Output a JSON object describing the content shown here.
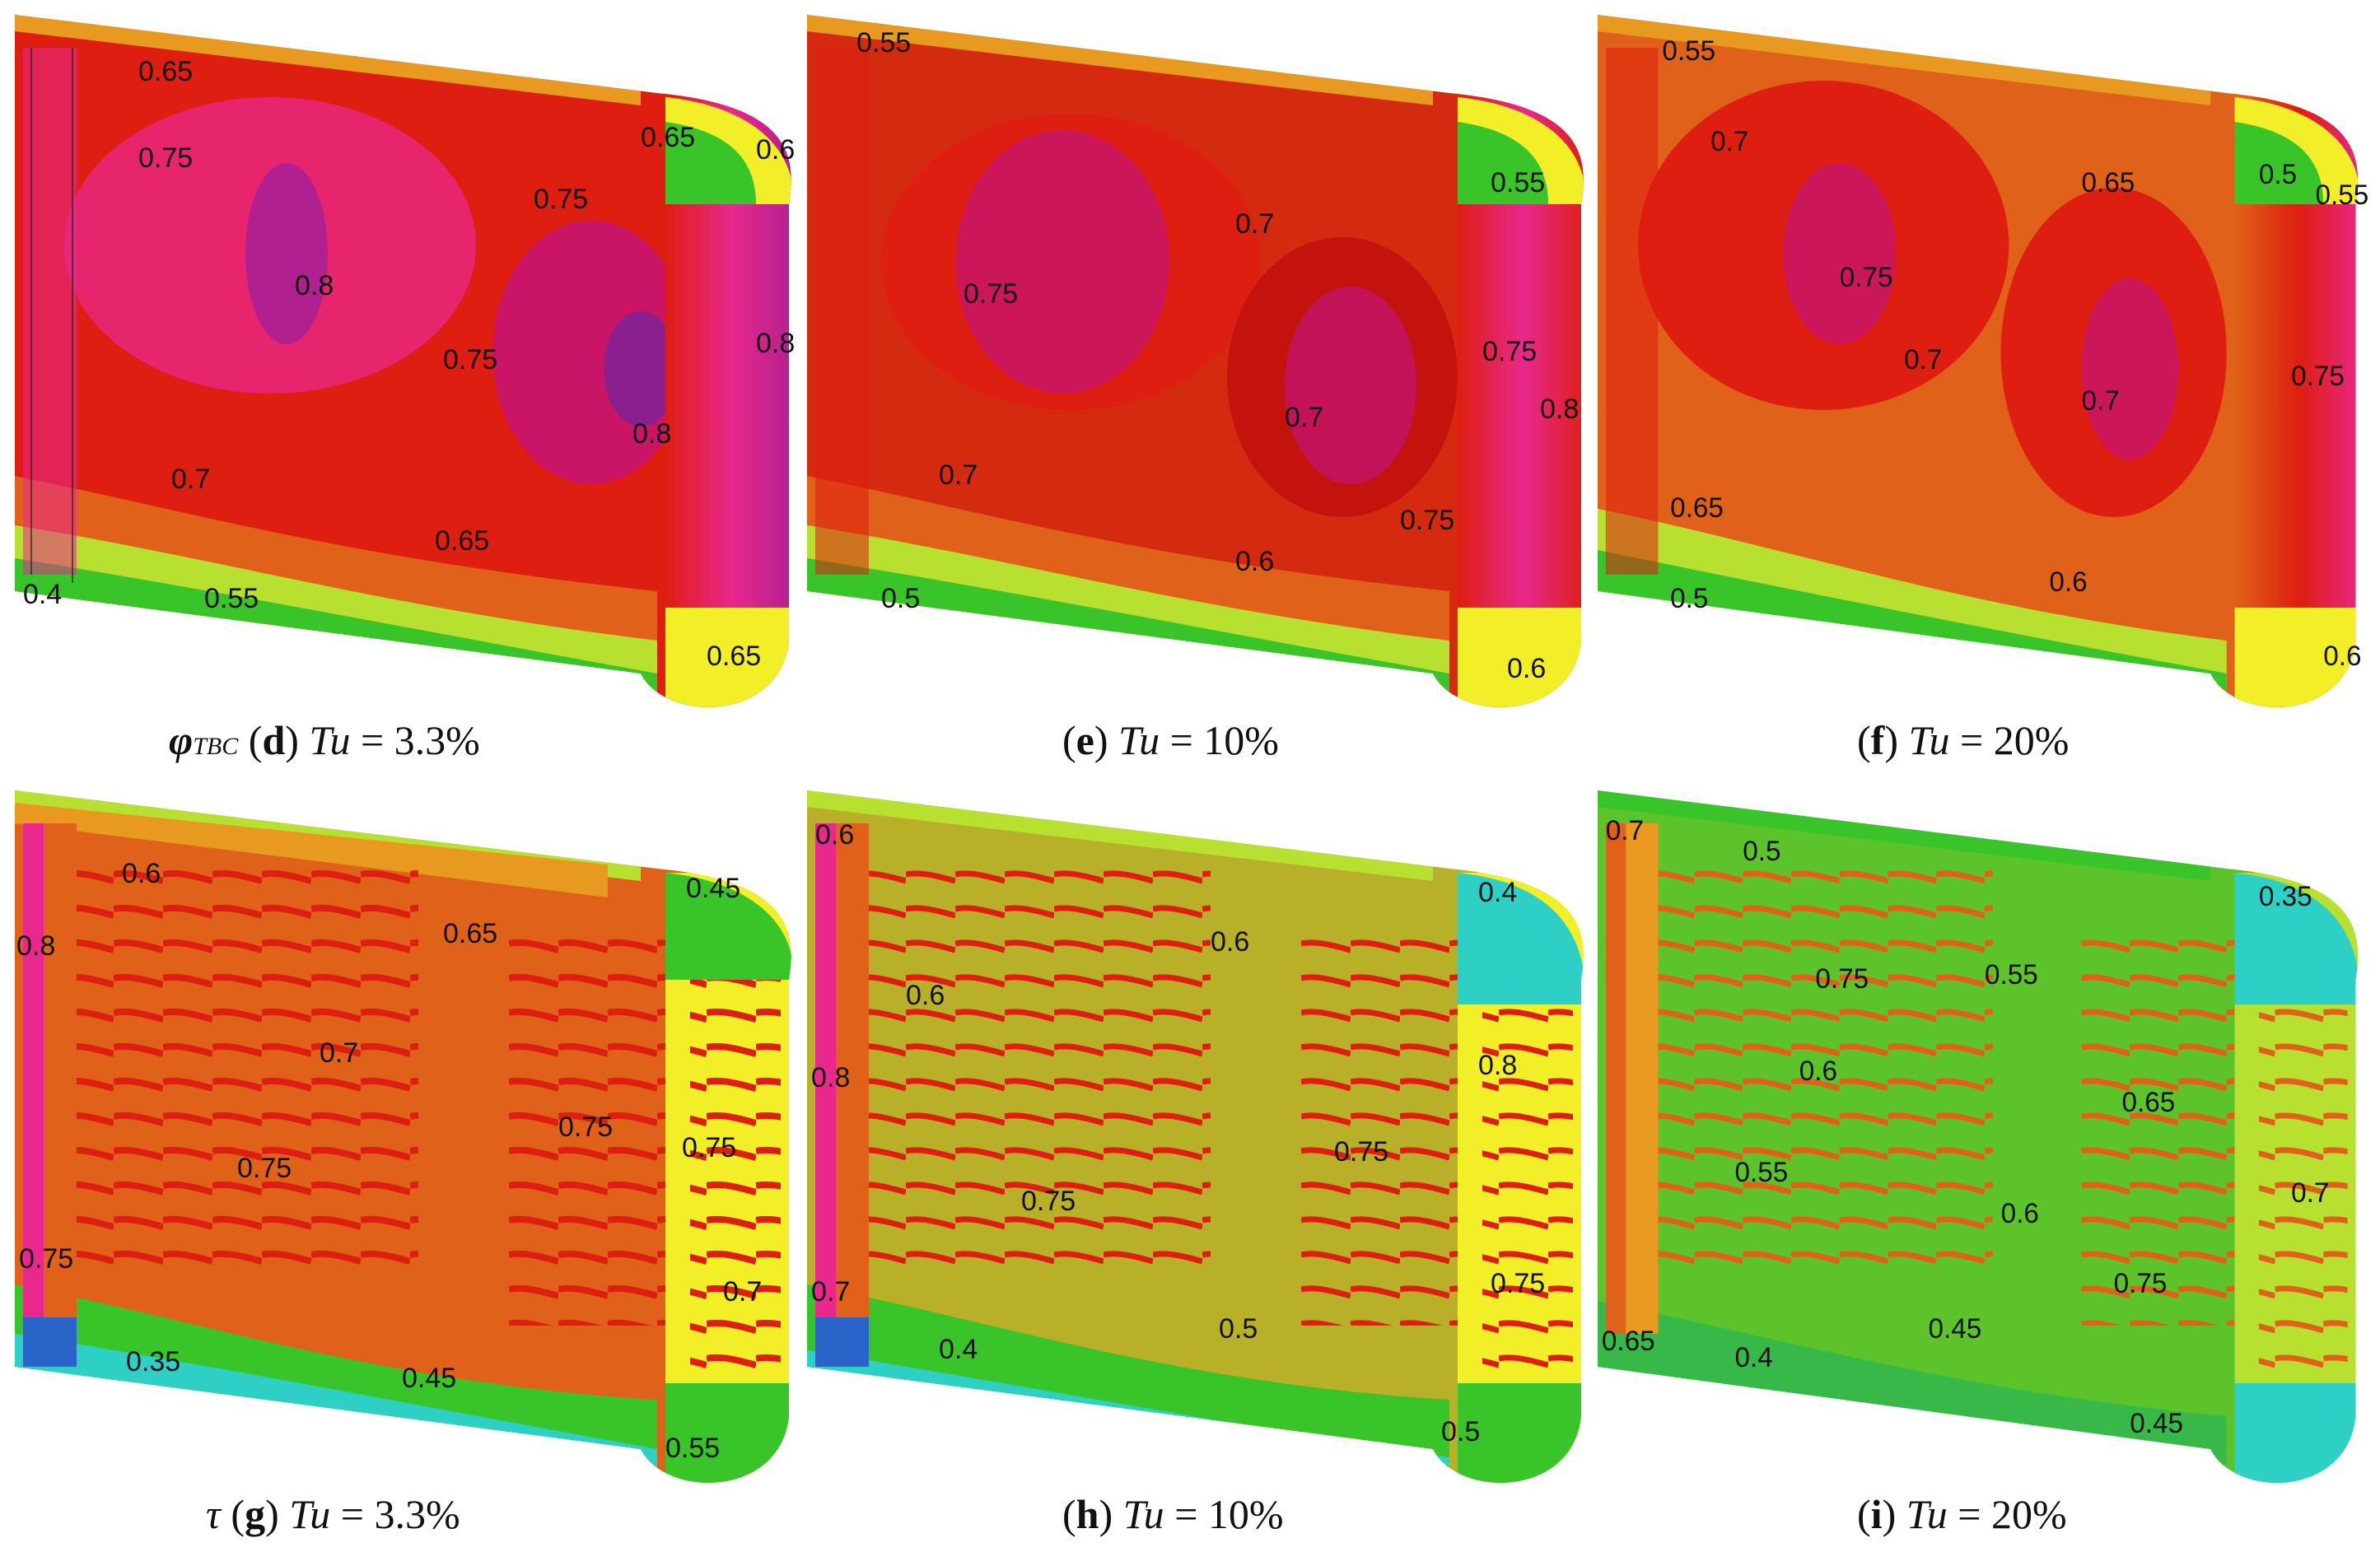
{
  "colors": {
    "magenta": "#e8288c",
    "purple": "#b0208f",
    "red": "#de1e10",
    "darkred": "#c4120c",
    "orange": "#e0621a",
    "amber": "#e89a20",
    "yellow": "#f2ee28",
    "lime": "#b8e030",
    "green": "#39c42a",
    "cyan": "#2ed0c6",
    "blue": "#2a64c8"
  },
  "panels": [
    {
      "id": "d",
      "caption": {
        "symbol": "φ",
        "subscript": "TBC",
        "letter": "d",
        "variable": "Tu",
        "equals": " = ",
        "value": "3.3%"
      },
      "labels": [
        "0.65",
        "0.75",
        "0.8",
        "0.75",
        "0.75",
        "0.7",
        "0.65",
        "0.55",
        "0.4",
        "0.65",
        "0.6",
        "0.8",
        "0.8",
        "0.65"
      ]
    },
    {
      "id": "e",
      "caption": {
        "symbol": "",
        "subscript": "",
        "letter": "e",
        "variable": "Tu",
        "equals": " = ",
        "value": "10%"
      },
      "labels": [
        "0.55",
        "0.75",
        "0.7",
        "0.7",
        "0.7",
        "0.75",
        "0.6",
        "0.5",
        "0.55",
        "0.75",
        "0.8",
        "0.6"
      ]
    },
    {
      "id": "f",
      "caption": {
        "symbol": "",
        "subscript": "",
        "letter": "f",
        "variable": "Tu",
        "equals": " = ",
        "value": "20%"
      },
      "labels": [
        "0.55",
        "0.7",
        "0.75",
        "0.7",
        "0.65",
        "0.7",
        "0.6",
        "0.65",
        "0.5",
        "0.5",
        "0.55",
        "0.75",
        "0.6"
      ]
    },
    {
      "id": "g",
      "caption": {
        "symbol": "τ",
        "subscript": "",
        "letter": "g",
        "variable": "Tu",
        "equals": " = ",
        "value": "3.3%"
      },
      "labels": [
        "0.6",
        "0.65",
        "0.8",
        "0.7",
        "0.75",
        "0.75",
        "0.75",
        "0.75",
        "0.35",
        "0.45",
        "0.45",
        "0.55",
        "0.7"
      ]
    },
    {
      "id": "h",
      "caption": {
        "symbol": "",
        "subscript": "",
        "letter": "h",
        "variable": "Tu",
        "equals": " = ",
        "value": "10%"
      },
      "labels": [
        "0.6",
        "0.6",
        "0.6",
        "0.8",
        "0.75",
        "0.75",
        "0.7",
        "0.4",
        "0.5",
        "0.4",
        "0.8",
        "0.75",
        "0.5"
      ]
    },
    {
      "id": "i",
      "caption": {
        "symbol": "",
        "subscript": "",
        "letter": "i",
        "variable": "Tu",
        "equals": " = ",
        "value": "20%"
      },
      "labels": [
        "0.7",
        "0.5",
        "0.75",
        "0.55",
        "0.6",
        "0.55",
        "0.65",
        "0.6",
        "0.4",
        "0.45",
        "0.65",
        "0.35",
        "0.7",
        "0.75",
        "0.45"
      ]
    }
  ]
}
